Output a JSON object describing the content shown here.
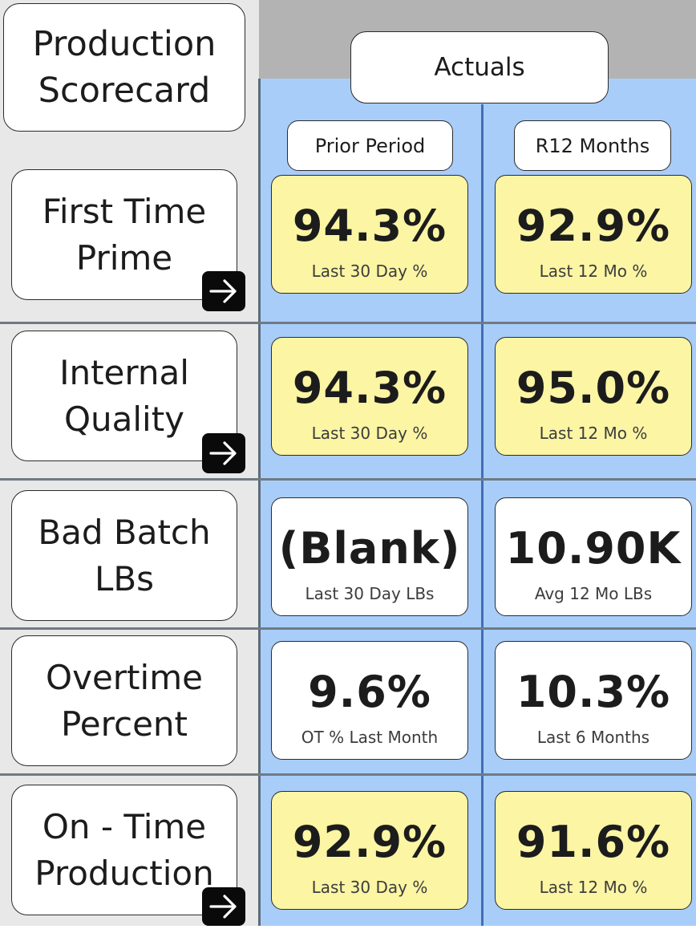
{
  "title": "Production Scorecard",
  "header": {
    "actuals": "Actuals",
    "columns": [
      "Prior Period",
      "R12 Months"
    ]
  },
  "rows": [
    {
      "label": "First Time Prime",
      "has_nav": true,
      "prior": {
        "value": "94.3%",
        "caption": "Last 30 Day %",
        "highlight": true
      },
      "r12": {
        "value": "92.9%",
        "caption": "Last 12 Mo %",
        "highlight": true
      }
    },
    {
      "label": "Internal Quality",
      "has_nav": true,
      "prior": {
        "value": "94.3%",
        "caption": "Last 30 Day %",
        "highlight": true
      },
      "r12": {
        "value": "95.0%",
        "caption": "Last 12 Mo %",
        "highlight": true
      }
    },
    {
      "label": "Bad Batch LBs",
      "has_nav": false,
      "prior": {
        "value": "(Blank)",
        "caption": "Last 30 Day LBs",
        "highlight": false
      },
      "r12": {
        "value": "10.90K",
        "caption": "Avg 12 Mo LBs",
        "highlight": false
      }
    },
    {
      "label": "Overtime Percent",
      "has_nav": false,
      "prior": {
        "value": "9.6%",
        "caption": "OT % Last Month",
        "highlight": false
      },
      "r12": {
        "value": "10.3%",
        "caption": "Last 6 Months",
        "highlight": false
      }
    },
    {
      "label": "On - Time Production",
      "has_nav": true,
      "prior": {
        "value": "92.9%",
        "caption": "Last 30 Day %",
        "highlight": true
      },
      "r12": {
        "value": "91.6%",
        "caption": "Last 12 Mo %",
        "highlight": true
      }
    }
  ],
  "nav_icon": "arrow-right-icon",
  "colors": {
    "highlight": "#fbf5a4",
    "panel": "#a9cdf9",
    "nav_button": "#0a0a0a"
  }
}
